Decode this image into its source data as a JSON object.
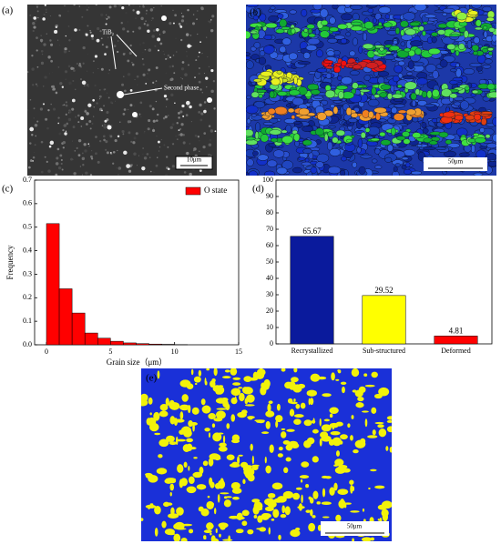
{
  "panels": {
    "a": {
      "label": "(a)",
      "annotations": [
        "TiB₂",
        "Second phase"
      ],
      "scale_bar": "10μm"
    },
    "b": {
      "label": "(b)",
      "scale_bar": "50μm"
    },
    "c": {
      "label": "(c)"
    },
    "d": {
      "label": "(d)"
    },
    "e": {
      "label": "(e)",
      "scale_bar": "50μm"
    }
  },
  "chart_data": [
    {
      "type": "histogram",
      "xlabel": "Grain size（μm）",
      "ylabel": "Frequency",
      "bins": [
        0,
        1,
        2,
        3,
        4,
        5,
        6,
        7,
        8,
        9,
        10,
        11
      ],
      "series": [
        {
          "name": "O state",
          "color": "#ff0000",
          "values": [
            0.515,
            0.238,
            0.135,
            0.05,
            0.028,
            0.015,
            0.008,
            0.005,
            0.003,
            0.002,
            0.001
          ]
        }
      ],
      "xlim": [
        0,
        15
      ],
      "xticks": [
        0,
        5,
        10,
        15
      ],
      "ylim": [
        0,
        0.7
      ],
      "yticks": [
        {
          "value": 0,
          "label": "0.0"
        },
        0.1,
        0.2,
        0.3,
        0.4,
        0.5,
        0.6,
        0.7
      ],
      "legend": "upper right"
    },
    {
      "type": "bar",
      "categories": [
        "Recrystallized",
        "Sub-structured",
        "Deformed"
      ],
      "values": [
        65.67,
        29.52,
        4.81
      ],
      "colors": [
        "#0a1a9c",
        "#ffff00",
        "#ff0000"
      ],
      "ylim": [
        0,
        100
      ],
      "yticks": [
        0,
        10,
        20,
        30,
        40,
        50,
        60,
        70,
        80,
        90,
        100
      ]
    }
  ]
}
